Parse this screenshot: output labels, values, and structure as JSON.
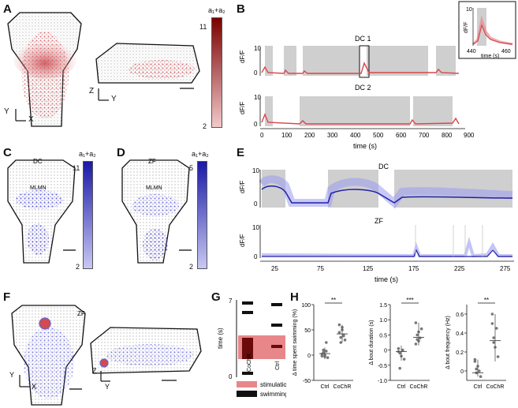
{
  "panels": {
    "A": {
      "label": "A",
      "axis_y": "Y",
      "axis_x": "X",
      "axis_z": "Z",
      "axis_y2": "Y",
      "colorbar": {
        "top": "a₁+a₂",
        "max": "11",
        "min": "2",
        "color": "#8b0000"
      }
    },
    "B": {
      "label": "B",
      "dc1": {
        "title": "DC 1",
        "ylabel": "dF/F",
        "yticks": [
          "10",
          "5",
          "0"
        ]
      },
      "dc2": {
        "title": "DC 2",
        "ylabel": "dF/F",
        "yticks": [
          "10",
          "5",
          "0"
        ]
      },
      "xlabel": "time (s)",
      "xticks": [
        "0",
        "100",
        "200",
        "300",
        "400",
        "500",
        "600",
        "700",
        "800",
        "900"
      ],
      "inset": {
        "ylabel": "dF/F",
        "ytick": "10",
        "xticks": [
          "440",
          "460"
        ],
        "xlabel": "time (s)"
      }
    },
    "C": {
      "label": "C",
      "title": "DC",
      "region": "MLMN",
      "colorbar": {
        "top": "a₁+a₂",
        "max": "11",
        "min": "2",
        "color": "#1a1aa6"
      }
    },
    "D": {
      "label": "D",
      "title": "ZF",
      "region": "MLMN",
      "colorbar": {
        "top": "a₁+a₂",
        "max": "5",
        "min": "2",
        "color": "#1a1aa6"
      }
    },
    "E": {
      "label": "E",
      "dc": {
        "title": "DC",
        "ylabel": "dF/F",
        "yticks": [
          "10",
          "5",
          "0"
        ]
      },
      "zf": {
        "title": "ZF",
        "ylabel": "dF/F",
        "yticks": [
          "10",
          "5",
          "0"
        ]
      },
      "xlabel": "time (s)",
      "xticks": [
        "25",
        "75",
        "125",
        "175",
        "225",
        "275"
      ]
    },
    "F": {
      "label": "F",
      "title": "ZF",
      "axis_y": "Y",
      "axis_x": "X",
      "axis_z": "Z",
      "axis_y2": "Y"
    },
    "G": {
      "label": "G",
      "ylabel": "time (s)",
      "ytop": "7",
      "ybottom": "0",
      "cats": [
        "CoChR",
        "Ctrl"
      ],
      "legend": [
        {
          "label": "stimulation",
          "color": "#e8878a"
        },
        {
          "label": "swimming",
          "color": "#000000"
        }
      ]
    },
    "H": {
      "label": "H"
    }
  },
  "chart_data": [
    {
      "type": "scatter",
      "ylabel": "Δ time spent swimming (%)",
      "categories": [
        "Ctrl",
        "CoChR"
      ],
      "yticks": [
        "100",
        "50",
        "0",
        "-50"
      ],
      "ylim": [
        -50,
        100
      ],
      "significance": "**",
      "series": [
        {
          "values": [
            [
              -2,
              5,
              0,
              8,
              -5,
              2,
              10,
              -3,
              25
            ],
            [
              45,
              35,
              55,
              40,
              30,
              60,
              25,
              50,
              38
            ]
          ]
        }
      ],
      "summary": {
        "means": [
          3,
          42
        ],
        "lo": [
          -8,
          25
        ],
        "hi": [
          15,
          60
        ]
      }
    },
    {
      "type": "scatter",
      "ylabel": "Δ bout duration (s)",
      "categories": [
        "Ctrl",
        "CoChR"
      ],
      "yticks": [
        "1.5",
        "1.0",
        "0.5",
        "0",
        "-0.5",
        "-1.0"
      ],
      "ylim": [
        -1.0,
        1.5
      ],
      "significance": "***",
      "series": [
        {
          "values": [
            [
              0.05,
              -0.1,
              -0.2,
              0.0,
              -0.3,
              -0.05,
              -0.6
            ],
            [
              0.9,
              0.5,
              0.3,
              0.4,
              0.7,
              0.2,
              0.35,
              0.6
            ]
          ]
        }
      ],
      "summary": {
        "means": [
          -0.05,
          0.42
        ],
        "lo": [
          -0.35,
          0.15
        ],
        "hi": [
          0.15,
          0.9
        ]
      }
    },
    {
      "type": "scatter",
      "ylabel": "Δ bout frequency (Hz)",
      "categories": [
        "Ctrl",
        "CoChR"
      ],
      "yticks": [
        "0.6",
        "0.4",
        "0.2",
        "0"
      ],
      "ylim": [
        -0.1,
        0.7
      ],
      "significance": "**",
      "series": [
        {
          "values": [
            [
              0.1,
              -0.02,
              0.05,
              0.0,
              -0.06,
              0.12,
              0.02
            ],
            [
              0.5,
              0.3,
              0.25,
              0.45,
              0.15,
              0.6,
              0.35
            ]
          ]
        }
      ],
      "summary": {
        "means": [
          -0.02,
          0.32
        ],
        "lo": [
          -0.06,
          0.1
        ],
        "hi": [
          0.12,
          0.6
        ]
      }
    }
  ]
}
